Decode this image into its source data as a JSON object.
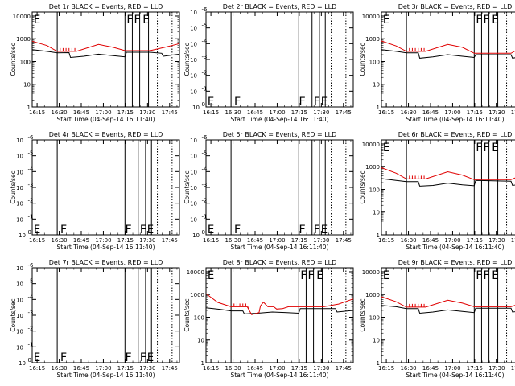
{
  "chart_data": {
    "type": "line",
    "layout": "3x3 grid",
    "xlabel": "Start Time (04-Sep-14 16:11:40)",
    "ylabel": "Counts/sec",
    "x_ticks": [
      "16:15",
      "16:30",
      "16:45",
      "17:00",
      "17:15",
      "17:30",
      "17:45"
    ],
    "x_range_minutes": [
      0,
      100
    ],
    "tick_minutes": [
      3.33,
      18.33,
      33.33,
      48.33,
      63.33,
      78.33,
      93.33
    ],
    "y_scale": "log",
    "colors": {
      "events": "#000000",
      "lld": "#e00000"
    },
    "panels": [
      {
        "title": "Det 1r BLACK = Events, RED = LLD",
        "has_data": true,
        "y_ticks": [
          "1",
          "10",
          "100",
          "1000",
          "10000"
        ],
        "y_range": [
          1,
          15000
        ],
        "solid_lines": [
          17,
          63,
          68,
          73,
          79
        ],
        "dotted_lines": [
          85,
          95
        ],
        "flags": [
          {
            "label": "E",
            "t": 1,
            "level": "top"
          },
          {
            "label": "F",
            "t": 64,
            "level": "top"
          },
          {
            "label": "F",
            "t": 69,
            "level": "top"
          },
          {
            "label": "E",
            "t": 75,
            "level": "top"
          }
        ],
        "events": [
          [
            0,
            330
          ],
          [
            10,
            280
          ],
          [
            17,
            240
          ],
          [
            25,
            245
          ],
          [
            26,
            150
          ],
          [
            35,
            170
          ],
          [
            45,
            210
          ],
          [
            55,
            180
          ],
          [
            63,
            160
          ],
          [
            64,
            255
          ],
          [
            80,
            255
          ],
          [
            88,
            230
          ],
          [
            89,
            170
          ],
          [
            100,
            210
          ]
        ],
        "lld": [
          [
            0,
            780
          ],
          [
            10,
            500
          ],
          [
            17,
            280
          ],
          [
            30,
            280
          ],
          [
            45,
            560
          ],
          [
            55,
            420
          ],
          [
            63,
            300
          ],
          [
            80,
            300
          ],
          [
            90,
            420
          ],
          [
            100,
            610
          ]
        ]
      },
      {
        "title": "Det 2r BLACK = Events, RED = LLD",
        "has_data": false,
        "y_ticks": [
          "10^0",
          "10^-1",
          "10^-2",
          "10^-3",
          "10^-4",
          "10^-5",
          "10^-6"
        ],
        "solid_lines": [
          17,
          63,
          72,
          77,
          81
        ],
        "dotted_lines": [
          85,
          95
        ],
        "flags": [
          {
            "label": "E",
            "t": 1,
            "level": "bottom"
          },
          {
            "label": "F",
            "t": 19,
            "level": "bottom"
          },
          {
            "label": "F",
            "t": 63,
            "level": "bottom"
          },
          {
            "label": "F",
            "t": 73,
            "level": "bottom"
          },
          {
            "label": "E",
            "t": 78,
            "level": "bottom"
          }
        ]
      },
      {
        "title": "Det 3r BLACK = Events, RED = LLD",
        "has_data": true,
        "y_ticks": [
          "1",
          "10",
          "100",
          "1000",
          "10000"
        ],
        "y_range": [
          1,
          15000
        ],
        "solid_lines": [
          17,
          63,
          68,
          73,
          79
        ],
        "dotted_lines": [
          85,
          95
        ],
        "flags": [
          {
            "label": "E",
            "t": 1,
            "level": "top"
          },
          {
            "label": "F",
            "t": 64,
            "level": "top"
          },
          {
            "label": "F",
            "t": 69,
            "level": "top"
          },
          {
            "label": "E",
            "t": 75,
            "level": "top"
          }
        ],
        "events": [
          [
            0,
            330
          ],
          [
            10,
            280
          ],
          [
            17,
            240
          ],
          [
            25,
            240
          ],
          [
            26,
            140
          ],
          [
            35,
            160
          ],
          [
            45,
            200
          ],
          [
            55,
            170
          ],
          [
            63,
            150
          ],
          [
            64,
            200
          ],
          [
            88,
            200
          ],
          [
            89,
            140
          ],
          [
            100,
            190
          ]
        ],
        "lld": [
          [
            0,
            800
          ],
          [
            10,
            480
          ],
          [
            17,
            280
          ],
          [
            30,
            280
          ],
          [
            45,
            560
          ],
          [
            55,
            420
          ],
          [
            63,
            230
          ],
          [
            88,
            230
          ],
          [
            95,
            420
          ],
          [
            100,
            620
          ]
        ]
      },
      {
        "title": "Det 4r BLACK = Events, RED = LLD",
        "has_data": false,
        "y_ticks": [
          "10^0",
          "10^-1",
          "10^-2",
          "10^-3",
          "10^-4",
          "10^-5",
          "10^-6"
        ],
        "solid_lines": [
          17,
          63,
          72,
          77,
          81
        ],
        "dotted_lines": [
          85,
          95
        ],
        "flags": [
          {
            "label": "E",
            "t": 1,
            "level": "bottom"
          },
          {
            "label": "F",
            "t": 19,
            "level": "bottom"
          },
          {
            "label": "F",
            "t": 63,
            "level": "bottom"
          },
          {
            "label": "F",
            "t": 73,
            "level": "bottom"
          },
          {
            "label": "E",
            "t": 78,
            "level": "bottom"
          }
        ]
      },
      {
        "title": "Det 5r BLACK = Events, RED = LLD",
        "has_data": false,
        "y_ticks": [
          "10^0",
          "10^-1",
          "10^-2",
          "10^-3",
          "10^-4",
          "10^-5",
          "10^-6"
        ],
        "solid_lines": [
          17,
          63,
          72,
          77,
          81
        ],
        "dotted_lines": [
          85,
          95
        ],
        "flags": [
          {
            "label": "E",
            "t": 1,
            "level": "bottom"
          },
          {
            "label": "F",
            "t": 19,
            "level": "bottom"
          },
          {
            "label": "F",
            "t": 63,
            "level": "bottom"
          },
          {
            "label": "F",
            "t": 73,
            "level": "bottom"
          },
          {
            "label": "E",
            "t": 78,
            "level": "bottom"
          }
        ]
      },
      {
        "title": "Det 6r BLACK = Events, RED = LLD",
        "has_data": true,
        "y_ticks": [
          "1",
          "10",
          "100",
          "1000",
          "10000"
        ],
        "y_range": [
          1,
          15000
        ],
        "solid_lines": [
          17,
          63,
          68,
          73,
          79
        ],
        "dotted_lines": [
          85,
          95
        ],
        "flags": [
          {
            "label": "E",
            "t": 1,
            "level": "top"
          },
          {
            "label": "F",
            "t": 64,
            "level": "top"
          },
          {
            "label": "F",
            "t": 69,
            "level": "top"
          },
          {
            "label": "E",
            "t": 75,
            "level": "top"
          }
        ],
        "events": [
          [
            0,
            300
          ],
          [
            10,
            250
          ],
          [
            17,
            220
          ],
          [
            25,
            220
          ],
          [
            26,
            140
          ],
          [
            35,
            150
          ],
          [
            45,
            190
          ],
          [
            55,
            160
          ],
          [
            63,
            145
          ],
          [
            64,
            250
          ],
          [
            88,
            230
          ],
          [
            89,
            150
          ],
          [
            100,
            190
          ]
        ],
        "lld": [
          [
            0,
            900
          ],
          [
            10,
            520
          ],
          [
            17,
            290
          ],
          [
            30,
            290
          ],
          [
            45,
            600
          ],
          [
            55,
            430
          ],
          [
            63,
            270
          ],
          [
            88,
            270
          ],
          [
            95,
            420
          ],
          [
            100,
            620
          ]
        ]
      },
      {
        "title": "Det 7r BLACK = Events, RED = LLD",
        "has_data": false,
        "y_ticks": [
          "10^0",
          "10^-1",
          "10^-2",
          "10^-3",
          "10^-4",
          "10^-5",
          "10^-6"
        ],
        "solid_lines": [
          17,
          63,
          72,
          77,
          81
        ],
        "dotted_lines": [
          85,
          95
        ],
        "flags": [
          {
            "label": "E",
            "t": 1,
            "level": "bottom"
          },
          {
            "label": "F",
            "t": 19,
            "level": "bottom"
          },
          {
            "label": "F",
            "t": 63,
            "level": "bottom"
          },
          {
            "label": "F",
            "t": 73,
            "level": "bottom"
          },
          {
            "label": "E",
            "t": 78,
            "level": "bottom"
          }
        ]
      },
      {
        "title": "Det 8r BLACK = Events, RED = LLD",
        "has_data": true,
        "y_ticks": [
          "1",
          "10",
          "100",
          "1000",
          "10000"
        ],
        "y_range": [
          1,
          15000
        ],
        "solid_lines": [
          17,
          63,
          68,
          73,
          79
        ],
        "dotted_lines": [
          85,
          95
        ],
        "flags": [
          {
            "label": "E",
            "t": 1,
            "level": "top"
          },
          {
            "label": "F",
            "t": 64,
            "level": "top"
          },
          {
            "label": "F",
            "t": 69,
            "level": "top"
          },
          {
            "label": "E",
            "t": 75,
            "level": "top"
          }
        ],
        "events": [
          [
            0,
            260
          ],
          [
            10,
            220
          ],
          [
            17,
            190
          ],
          [
            25,
            190
          ],
          [
            26,
            140
          ],
          [
            35,
            150
          ],
          [
            45,
            170
          ],
          [
            55,
            160
          ],
          [
            63,
            150
          ],
          [
            64,
            240
          ],
          [
            88,
            240
          ],
          [
            89,
            170
          ],
          [
            100,
            200
          ]
        ],
        "lld": [
          [
            0,
            1100
          ],
          [
            8,
            450
          ],
          [
            17,
            290
          ],
          [
            28,
            290
          ],
          [
            31,
            130
          ],
          [
            36,
            160
          ],
          [
            37,
            320
          ],
          [
            39,
            460
          ],
          [
            42,
            290
          ],
          [
            46,
            290
          ],
          [
            48,
            230
          ],
          [
            52,
            240
          ],
          [
            56,
            290
          ],
          [
            80,
            290
          ],
          [
            90,
            380
          ],
          [
            100,
            640
          ]
        ]
      },
      {
        "title": "Det 9r BLACK = Events, RED = LLD",
        "has_data": true,
        "y_ticks": [
          "1",
          "10",
          "100",
          "1000",
          "10000"
        ],
        "y_range": [
          1,
          15000
        ],
        "solid_lines": [
          17,
          63,
          68,
          73,
          79
        ],
        "dotted_lines": [
          85,
          95
        ],
        "flags": [
          {
            "label": "E",
            "t": 1,
            "level": "top"
          },
          {
            "label": "F",
            "t": 64,
            "level": "top"
          },
          {
            "label": "F",
            "t": 69,
            "level": "top"
          },
          {
            "label": "E",
            "t": 75,
            "level": "top"
          }
        ],
        "events": [
          [
            0,
            330
          ],
          [
            10,
            290
          ],
          [
            17,
            240
          ],
          [
            25,
            240
          ],
          [
            26,
            150
          ],
          [
            35,
            170
          ],
          [
            45,
            210
          ],
          [
            55,
            180
          ],
          [
            63,
            160
          ],
          [
            64,
            250
          ],
          [
            88,
            250
          ],
          [
            89,
            170
          ],
          [
            100,
            210
          ]
        ],
        "lld": [
          [
            0,
            800
          ],
          [
            10,
            480
          ],
          [
            17,
            280
          ],
          [
            30,
            280
          ],
          [
            45,
            560
          ],
          [
            55,
            420
          ],
          [
            63,
            290
          ],
          [
            88,
            290
          ],
          [
            95,
            420
          ],
          [
            100,
            620
          ]
        ]
      }
    ]
  }
}
